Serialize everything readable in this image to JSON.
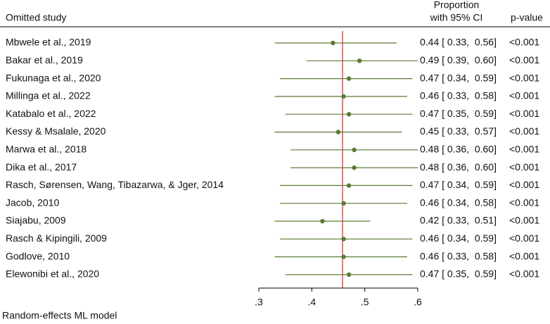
{
  "chart_data": {
    "type": "forest",
    "study_header": "Omitted study",
    "ci_header": [
      "Proportion",
      "with 95% CI"
    ],
    "p_header": "p-value",
    "note": "Random-effects ML model",
    "categories": [
      "Mbwele et al., 2019",
      "Bakar et al., 2019",
      "Fukunaga et al., 2020",
      "Millinga et al., 2022",
      "Katabalo et al., 2022",
      "Kessy & Msalale, 2020",
      "Marwa et al., 2018",
      "Dika et al., 2017",
      "Rasch, Sørensen, Wang, Tibazarwa, & Jger, 2014",
      "Jacob, 2010",
      "Siajabu, 2009",
      "Rasch & Kipingili, 2009",
      "Godlove, 2010",
      "Elewonibi et al., 2020"
    ],
    "values": [
      0.44,
      0.49,
      0.47,
      0.46,
      0.47,
      0.45,
      0.48,
      0.48,
      0.47,
      0.46,
      0.42,
      0.46,
      0.46,
      0.47
    ],
    "lower": [
      0.33,
      0.39,
      0.34,
      0.33,
      0.35,
      0.33,
      0.36,
      0.36,
      0.34,
      0.34,
      0.33,
      0.34,
      0.33,
      0.35
    ],
    "upper": [
      0.56,
      0.6,
      0.59,
      0.58,
      0.59,
      0.57,
      0.6,
      0.6,
      0.59,
      0.58,
      0.51,
      0.59,
      0.58,
      0.59
    ],
    "value_labels": [
      "0.44 [ 0.33,  0.56]",
      "0.49 [ 0.39,  0.60]",
      "0.47 [ 0.34,  0.59]",
      "0.46 [ 0.33,  0.58]",
      "0.47 [ 0.35,  0.59]",
      "0.45 [ 0.33,  0.57]",
      "0.48 [ 0.36,  0.60]",
      "0.48 [ 0.36,  0.60]",
      "0.47 [ 0.34,  0.59]",
      "0.46 [ 0.34,  0.58]",
      "0.42 [ 0.33,  0.51]",
      "0.46 [ 0.34,  0.59]",
      "0.46 [ 0.33,  0.58]",
      "0.47 [ 0.35,  0.59]"
    ],
    "p_values": [
      "<0.001",
      "<0.001",
      "<0.001",
      "<0.001",
      "<0.001",
      "<0.001",
      "<0.001",
      "<0.001",
      "<0.001",
      "<0.001",
      "<0.001",
      "<0.001",
      "<0.001",
      "<0.001"
    ],
    "ref_line": 0.458,
    "xlim": [
      0.3,
      0.6
    ],
    "xticks": [
      {
        "value": 0.3,
        "label": ".3"
      },
      {
        "value": 0.4,
        "label": ".4"
      },
      {
        "value": 0.5,
        "label": ".5"
      },
      {
        "value": 0.6,
        "label": ".6"
      }
    ],
    "color": "#5b7a35",
    "ref_color": "#d9363e"
  }
}
